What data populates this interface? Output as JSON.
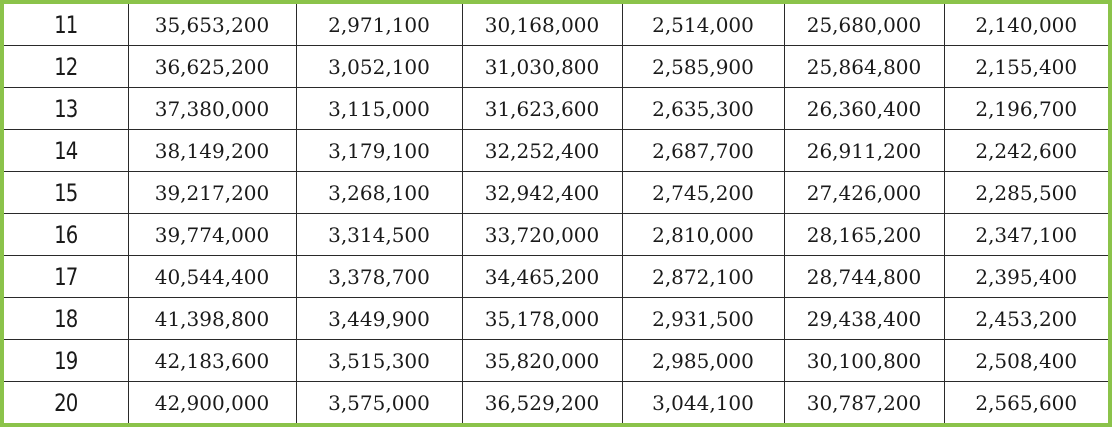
{
  "table": {
    "rows": [
      [
        "11",
        "35,653,200",
        "2,971,100",
        "30,168,000",
        "2,514,000",
        "25,680,000",
        "2,140,000"
      ],
      [
        "12",
        "36,625,200",
        "3,052,100",
        "31,030,800",
        "2,585,900",
        "25,864,800",
        "2,155,400"
      ],
      [
        "13",
        "37,380,000",
        "3,115,000",
        "31,623,600",
        "2,635,300",
        "26,360,400",
        "2,196,700"
      ],
      [
        "14",
        "38,149,200",
        "3,179,100",
        "32,252,400",
        "2,687,700",
        "26,911,200",
        "2,242,600"
      ],
      [
        "15",
        "39,217,200",
        "3,268,100",
        "32,942,400",
        "2,745,200",
        "27,426,000",
        "2,285,500"
      ],
      [
        "16",
        "39,774,000",
        "3,314,500",
        "33,720,000",
        "2,810,000",
        "28,165,200",
        "2,347,100"
      ],
      [
        "17",
        "40,544,400",
        "3,378,700",
        "34,465,200",
        "2,872,100",
        "28,744,800",
        "2,395,400"
      ],
      [
        "18",
        "41,398,800",
        "3,449,900",
        "35,178,000",
        "2,931,500",
        "29,438,400",
        "2,453,200"
      ],
      [
        "19",
        "42,183,600",
        "3,515,300",
        "35,820,000",
        "2,985,000",
        "30,100,800",
        "2,508,400"
      ],
      [
        "20",
        "42,900,000",
        "3,575,000",
        "36,529,200",
        "3,044,100",
        "30,787,200",
        "2,565,600"
      ]
    ]
  },
  "colors": {
    "frame": "#8BC34A",
    "grid_line": "#2a2a2a",
    "text": "#1a1a1a"
  }
}
